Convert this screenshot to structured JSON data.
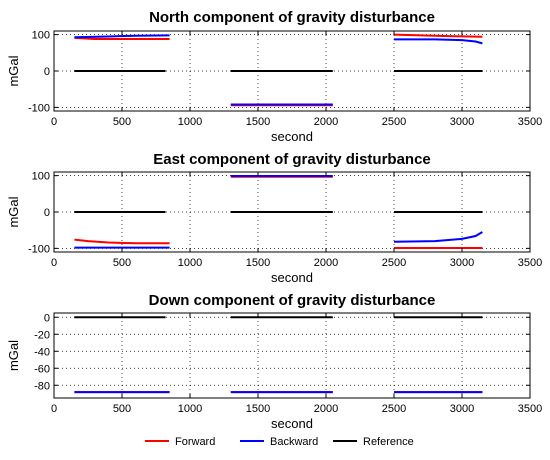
{
  "chart_data": [
    {
      "type": "line",
      "title": "North component of gravity disturbance",
      "xlabel": "second",
      "ylabel": "mGal",
      "xlim": [
        0,
        3500
      ],
      "ylim": [
        -110,
        110
      ],
      "xticks": [
        0,
        500,
        1000,
        1500,
        2000,
        2500,
        3000,
        3500
      ],
      "yticks": [
        -100,
        0,
        100
      ],
      "grid": true,
      "series": [
        {
          "name": "Forward",
          "color": "#ff0000",
          "segments": [
            [
              [
                150,
                91
              ],
              [
                300,
                88
              ],
              [
                500,
                88
              ],
              [
                700,
                88
              ],
              [
                850,
                88
              ]
            ],
            [
              [
                1300,
                -94
              ],
              [
                1700,
                -94
              ],
              [
                2050,
                -94
              ]
            ],
            [
              [
                2500,
                100
              ],
              [
                2700,
                98
              ],
              [
                2900,
                96
              ],
              [
                3050,
                95
              ],
              [
                3150,
                94
              ]
            ]
          ]
        },
        {
          "name": "Backward",
          "color": "#0000ff",
          "segments": [
            [
              [
                150,
                93
              ],
              [
                400,
                95
              ],
              [
                600,
                97
              ],
              [
                850,
                98
              ]
            ],
            [
              [
                1300,
                -92
              ],
              [
                1700,
                -92
              ],
              [
                2050,
                -92
              ]
            ],
            [
              [
                2500,
                87
              ],
              [
                2800,
                87
              ],
              [
                3000,
                85
              ],
              [
                3100,
                81
              ],
              [
                3150,
                76
              ]
            ]
          ]
        },
        {
          "name": "Reference",
          "color": "#000000",
          "segments": [
            [
              [
                150,
                0
              ],
              [
                820,
                0
              ]
            ],
            [
              [
                1300,
                0
              ],
              [
                2050,
                0
              ]
            ],
            [
              [
                2500,
                0
              ],
              [
                3150,
                0
              ]
            ]
          ]
        }
      ]
    },
    {
      "type": "line",
      "title": "East component of gravity disturbance",
      "xlabel": "second",
      "ylabel": "mGal",
      "xlim": [
        0,
        3500
      ],
      "ylim": [
        -110,
        110
      ],
      "xticks": [
        0,
        500,
        1000,
        1500,
        2000,
        2500,
        3000,
        3500
      ],
      "yticks": [
        -100,
        0,
        100
      ],
      "grid": true,
      "series": [
        {
          "name": "Forward",
          "color": "#ff0000",
          "segments": [
            [
              [
                150,
                -76
              ],
              [
                250,
                -80
              ],
              [
                400,
                -84
              ],
              [
                600,
                -86
              ],
              [
                850,
                -86
              ]
            ],
            [
              [
                1300,
                97
              ],
              [
                1700,
                97
              ],
              [
                2050,
                97
              ]
            ],
            [
              [
                2500,
                -99
              ],
              [
                3150,
                -99
              ]
            ]
          ]
        },
        {
          "name": "Backward",
          "color": "#0000ff",
          "segments": [
            [
              [
                150,
                -98
              ],
              [
                850,
                -98
              ]
            ],
            [
              [
                1300,
                99
              ],
              [
                1700,
                99
              ],
              [
                2050,
                99
              ]
            ],
            [
              [
                2500,
                -82
              ],
              [
                2800,
                -80
              ],
              [
                3000,
                -74
              ],
              [
                3100,
                -66
              ],
              [
                3150,
                -55
              ]
            ]
          ]
        },
        {
          "name": "Reference",
          "color": "#000000",
          "segments": [
            [
              [
                150,
                0
              ],
              [
                820,
                0
              ]
            ],
            [
              [
                1300,
                0
              ],
              [
                2050,
                0
              ]
            ],
            [
              [
                2500,
                0
              ],
              [
                3150,
                0
              ]
            ]
          ]
        }
      ]
    },
    {
      "type": "line",
      "title": "Down component of gravity disturbance",
      "xlabel": "second",
      "ylabel": "mGal",
      "xlim": [
        0,
        3500
      ],
      "ylim": [
        -95,
        5
      ],
      "xticks": [
        0,
        500,
        1000,
        1500,
        2000,
        2500,
        3000,
        3500
      ],
      "yticks": [
        -80,
        -60,
        -40,
        -20,
        0
      ],
      "grid": true,
      "series": [
        {
          "name": "Forward",
          "color": "#ff0000",
          "segments": [
            [
              [
                150,
                -88
              ],
              [
                850,
                -88
              ]
            ],
            [
              [
                1300,
                -88
              ],
              [
                2050,
                -88
              ]
            ],
            [
              [
                2500,
                -88
              ],
              [
                3150,
                -88
              ]
            ]
          ]
        },
        {
          "name": "Backward",
          "color": "#0000ff",
          "segments": [
            [
              [
                150,
                -88
              ],
              [
                850,
                -88
              ]
            ],
            [
              [
                1300,
                -88
              ],
              [
                2050,
                -88
              ]
            ],
            [
              [
                2500,
                -88
              ],
              [
                3150,
                -88
              ]
            ]
          ]
        },
        {
          "name": "Reference",
          "color": "#000000",
          "segments": [
            [
              [
                150,
                0
              ],
              [
                820,
                0
              ]
            ],
            [
              [
                1300,
                0
              ],
              [
                2050,
                0
              ]
            ],
            [
              [
                2500,
                0
              ],
              [
                3150,
                0
              ]
            ]
          ]
        }
      ]
    }
  ],
  "legend": {
    "placement": "bottom",
    "items": [
      {
        "label": "Forward",
        "color": "#ff0000"
      },
      {
        "label": "Backward",
        "color": "#0000ff"
      },
      {
        "label": "Reference",
        "color": "#000000"
      }
    ]
  }
}
